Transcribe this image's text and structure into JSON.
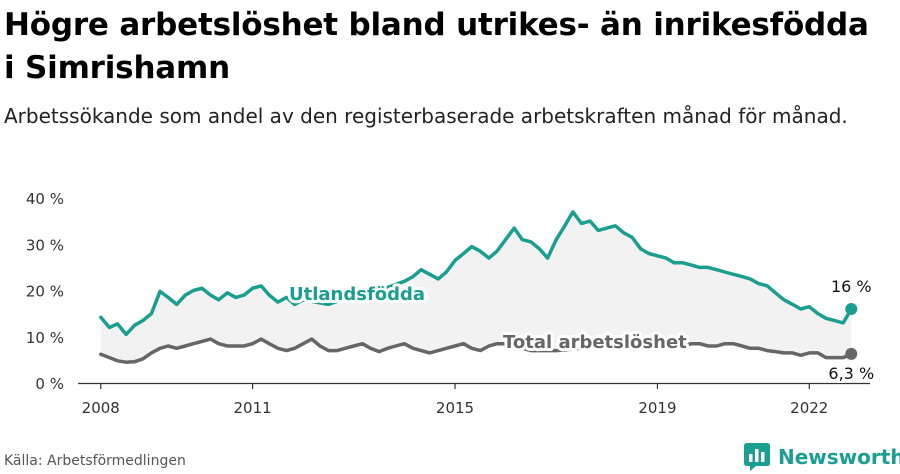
{
  "title": "Högre arbetslöshet bland utrikes- än inrikesfödda i Simrishamn",
  "subtitle": "Arbetssökande som andel av den registerbaserade arbetskraften månad för månad.",
  "source": "Källa: Arbetsförmedlingen",
  "brand": {
    "name": "Newsworthy",
    "logo_icon": "bar-chart-logo-icon"
  },
  "colors": {
    "utrikes": "#1a9e8f",
    "total": "#666666",
    "band": "#f2f2f2",
    "axis": "#333333"
  },
  "chart_data": {
    "type": "line",
    "ylim": [
      0,
      40
    ],
    "y_ticks": [
      {
        "value": 0,
        "label": "0 %"
      },
      {
        "value": 10,
        "label": "10 %"
      },
      {
        "value": 20,
        "label": "20 %"
      },
      {
        "value": 30,
        "label": "30 %"
      },
      {
        "value": 40,
        "label": "40 %"
      }
    ],
    "x_ticks": [
      2008,
      2011,
      2015,
      2019,
      2022
    ],
    "xlim": [
      2007.55,
      2023.2
    ],
    "series": [
      {
        "name": "Utlandsfödda",
        "end_label": "16 %",
        "x": [
          2008.0,
          2008.17,
          2008.33,
          2008.5,
          2008.67,
          2008.83,
          2009.0,
          2009.17,
          2009.33,
          2009.5,
          2009.67,
          2009.83,
          2010.0,
          2010.17,
          2010.33,
          2010.5,
          2010.67,
          2010.83,
          2011.0,
          2011.17,
          2011.33,
          2011.5,
          2011.67,
          2011.83,
          2012.0,
          2012.25,
          2012.5,
          2012.75,
          2013.0,
          2013.25,
          2013.5,
          2013.75,
          2014.0,
          2014.17,
          2014.33,
          2014.5,
          2014.67,
          2014.83,
          2015.0,
          2015.17,
          2015.33,
          2015.5,
          2015.67,
          2015.83,
          2016.0,
          2016.17,
          2016.33,
          2016.5,
          2016.67,
          2016.83,
          2017.0,
          2017.17,
          2017.33,
          2017.5,
          2017.67,
          2017.83,
          2018.0,
          2018.17,
          2018.33,
          2018.5,
          2018.67,
          2018.83,
          2019.0,
          2019.17,
          2019.33,
          2019.5,
          2019.67,
          2019.83,
          2020.0,
          2020.17,
          2020.33,
          2020.5,
          2020.67,
          2020.83,
          2021.0,
          2021.17,
          2021.33,
          2021.5,
          2021.67,
          2021.83,
          2022.0,
          2022.17,
          2022.33,
          2022.5,
          2022.67,
          2022.83
        ],
        "values": [
          14.2,
          12.0,
          12.8,
          10.5,
          12.5,
          13.5,
          15.0,
          19.8,
          18.5,
          17.0,
          19.0,
          20.0,
          20.5,
          19.0,
          18.0,
          19.5,
          18.5,
          19.0,
          20.5,
          21.0,
          19.0,
          17.5,
          18.5,
          17.0,
          18.0,
          17.5,
          17.0,
          18.0,
          19.0,
          19.5,
          20.0,
          21.0,
          22.0,
          23.0,
          24.5,
          23.5,
          22.5,
          24.0,
          26.5,
          28.0,
          29.5,
          28.5,
          27.0,
          28.5,
          31.0,
          33.5,
          31.0,
          30.5,
          29.0,
          27.0,
          31.0,
          34.0,
          37.0,
          34.5,
          35.0,
          33.0,
          33.5,
          34.0,
          32.5,
          31.5,
          29.0,
          28.0,
          27.5,
          27.0,
          26.0,
          26.0,
          25.5,
          25.0,
          25.0,
          24.5,
          24.0,
          23.5,
          23.0,
          22.5,
          21.5,
          21.0,
          19.5,
          18.0,
          17.0,
          16.0,
          16.5,
          15.0,
          14.0,
          13.5,
          13.0,
          16.0
        ]
      },
      {
        "name": "Total arbetslöshet",
        "end_label": "6,3 %",
        "x": [
          2008.0,
          2008.17,
          2008.33,
          2008.5,
          2008.67,
          2008.83,
          2009.0,
          2009.17,
          2009.33,
          2009.5,
          2009.67,
          2009.83,
          2010.0,
          2010.17,
          2010.33,
          2010.5,
          2010.67,
          2010.83,
          2011.0,
          2011.17,
          2011.33,
          2011.5,
          2011.67,
          2011.83,
          2012.0,
          2012.17,
          2012.33,
          2012.5,
          2012.67,
          2012.83,
          2013.0,
          2013.17,
          2013.33,
          2013.5,
          2013.67,
          2013.83,
          2014.0,
          2014.17,
          2014.33,
          2014.5,
          2014.67,
          2014.83,
          2015.0,
          2015.17,
          2015.33,
          2015.5,
          2015.67,
          2015.83,
          2016.0,
          2016.5,
          2017.0,
          2017.5,
          2018.0,
          2018.5,
          2019.0,
          2019.5,
          2019.67,
          2019.83,
          2020.0,
          2020.17,
          2020.33,
          2020.5,
          2020.67,
          2020.83,
          2021.0,
          2021.17,
          2021.33,
          2021.5,
          2021.67,
          2021.83,
          2022.0,
          2022.17,
          2022.33,
          2022.5,
          2022.67,
          2022.83
        ],
        "values": [
          6.2,
          5.5,
          4.8,
          4.5,
          4.6,
          5.2,
          6.5,
          7.5,
          8.0,
          7.5,
          8.0,
          8.5,
          9.0,
          9.5,
          8.5,
          8.0,
          8.0,
          8.0,
          8.5,
          9.5,
          8.5,
          7.5,
          7.0,
          7.5,
          8.5,
          9.5,
          8.0,
          7.0,
          7.0,
          7.5,
          8.0,
          8.5,
          7.5,
          6.8,
          7.5,
          8.0,
          8.5,
          7.5,
          7.0,
          6.5,
          7.0,
          7.5,
          8.0,
          8.5,
          7.5,
          7.0,
          8.0,
          8.5,
          8.5,
          7.0,
          7.0,
          7.5,
          8.0,
          8.0,
          8.0,
          8.0,
          8.5,
          8.5,
          8.0,
          8.0,
          8.5,
          8.5,
          8.0,
          7.5,
          7.5,
          7.0,
          6.8,
          6.5,
          6.5,
          6.0,
          6.5,
          6.5,
          5.5,
          5.5,
          5.5,
          6.3
        ]
      }
    ]
  }
}
